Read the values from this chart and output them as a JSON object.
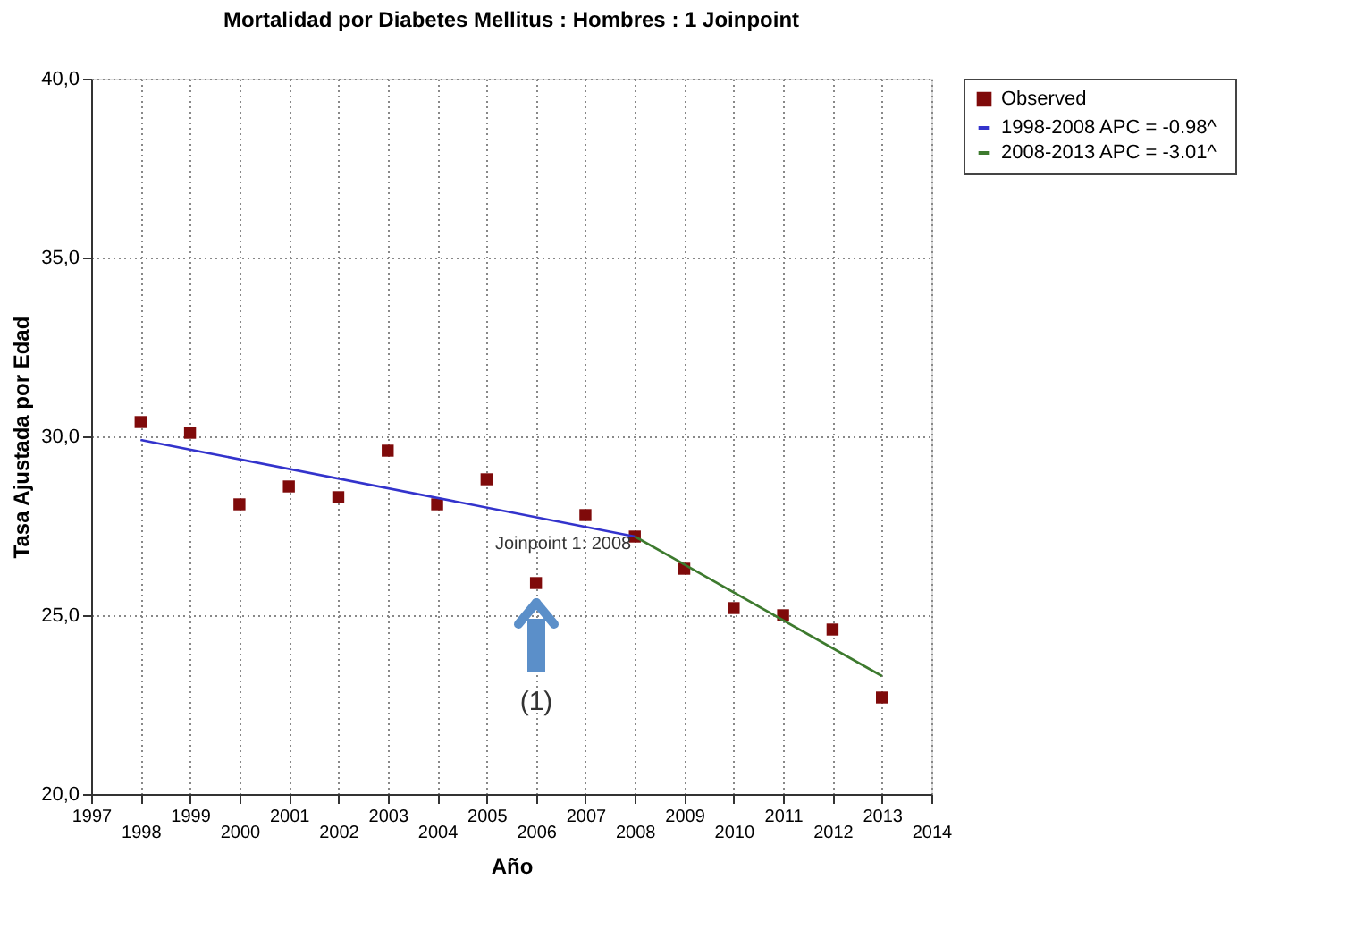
{
  "chart_data": {
    "type": "scatter",
    "title": "Mortalidad por Diabetes Mellitus : Hombres : 1 Joinpoint",
    "xlabel": "Año",
    "ylabel": "Tasa Ajustada por Edad",
    "xlim": [
      1997,
      2014
    ],
    "xticks": [
      1997,
      1999,
      2001,
      2003,
      2005,
      2007,
      2009,
      2011,
      2013
    ],
    "x2lim": [
      1997,
      2014
    ],
    "x2ticks": [
      1998,
      2000,
      2002,
      2004,
      2006,
      2008,
      2010,
      2012,
      2014
    ],
    "ylim": [
      20,
      40
    ],
    "yticks": [
      {
        "value": 20,
        "label": "20,0"
      },
      {
        "value": 25,
        "label": "25,0"
      },
      {
        "value": 30,
        "label": "30,0"
      },
      {
        "value": 35,
        "label": "35,0"
      },
      {
        "value": 40,
        "label": "40,0"
      }
    ],
    "grid": true,
    "legend": "top right",
    "series": [
      {
        "name": "Observed",
        "marker": "square",
        "color": "#7f0a0a",
        "x": [
          1998,
          1999,
          2000,
          2001,
          2002,
          2003,
          2004,
          2005,
          2006,
          2007,
          2008,
          2009,
          2010,
          2011,
          2012,
          2013
        ],
        "values": [
          30.4,
          30.1,
          28.1,
          28.6,
          28.3,
          29.6,
          28.1,
          28.8,
          25.9,
          27.8,
          27.2,
          26.3,
          25.2,
          25.0,
          24.6,
          22.7
        ]
      },
      {
        "name": "1998-2008 APC  = -0.98^",
        "type": "line",
        "line_style": "solid",
        "color": "#3333cc",
        "x": [
          1998,
          2008
        ],
        "values": [
          29.9,
          27.2
        ]
      },
      {
        "name": "2008-2013 APC  = -3.01^",
        "type": "line",
        "line_style": "solid",
        "color": "#3d7a2e",
        "x": [
          2008,
          2013
        ],
        "values": [
          27.2,
          23.3
        ]
      }
    ],
    "annotations": [
      {
        "text": "Joinpoint 1:  2008",
        "x": 2008,
        "y": 27.2
      },
      "(1)"
    ]
  }
}
